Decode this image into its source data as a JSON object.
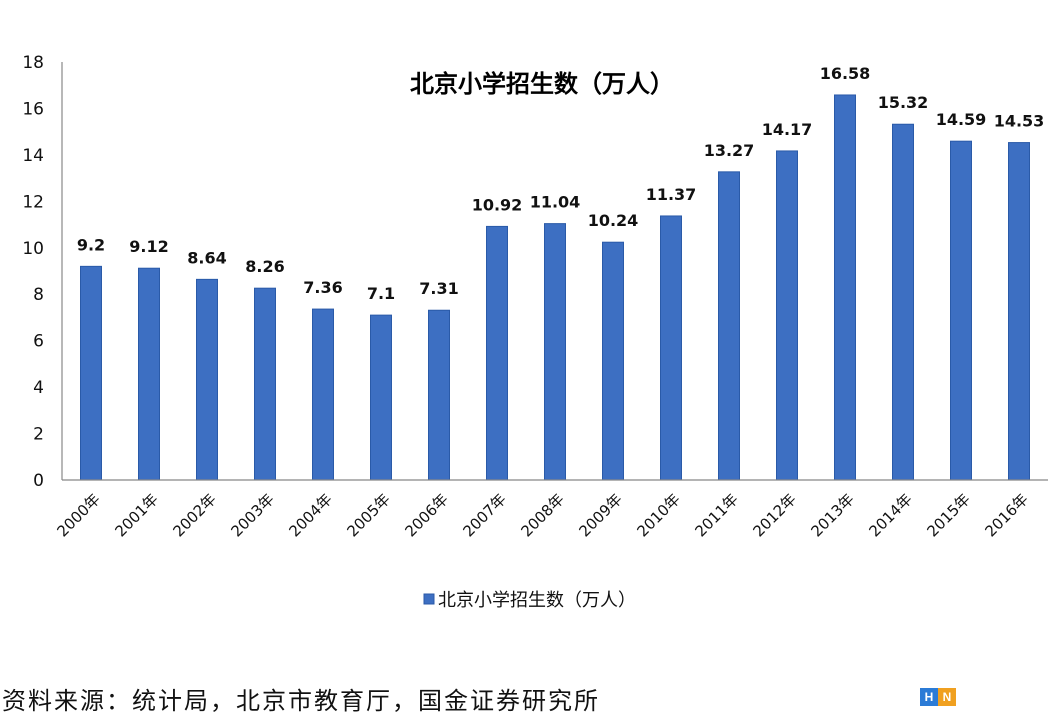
{
  "chart_data": {
    "type": "bar",
    "title": "北京小学招生数（万人）",
    "categories": [
      "2000年",
      "2001年",
      "2002年",
      "2003年",
      "2004年",
      "2005年",
      "2006年",
      "2007年",
      "2008年",
      "2009年",
      "2010年",
      "2011年",
      "2012年",
      "2013年",
      "2014年",
      "2015年",
      "2016年"
    ],
    "series": [
      {
        "name": "北京小学招生数（万人）",
        "values": [
          9.2,
          9.12,
          8.64,
          8.26,
          7.36,
          7.1,
          7.31,
          10.92,
          11.04,
          10.24,
          11.37,
          13.27,
          14.17,
          16.58,
          15.32,
          14.59,
          14.53
        ]
      }
    ],
    "data_labels": [
      "9.2",
      "9.12",
      "8.64",
      "8.26",
      "7.36",
      "7.1",
      "7.31",
      "10.92",
      "11.04",
      "10.24",
      "11.37",
      "13.27",
      "14.17",
      "16.58",
      "15.32",
      "14.59",
      "14.53"
    ],
    "ylim": [
      0,
      18
    ],
    "yticks": [
      0,
      2,
      4,
      6,
      8,
      10,
      12,
      14,
      16,
      18
    ],
    "grid": false,
    "legend_position": "bottom",
    "bar_color": "#3d6fc2"
  },
  "source_text": "资料来源：统计局，北京市教育厅，国金证券研究所",
  "watermark": {
    "letters": [
      "H",
      "N"
    ],
    "colors": [
      "#2b7bd6",
      "#f0a020"
    ]
  }
}
